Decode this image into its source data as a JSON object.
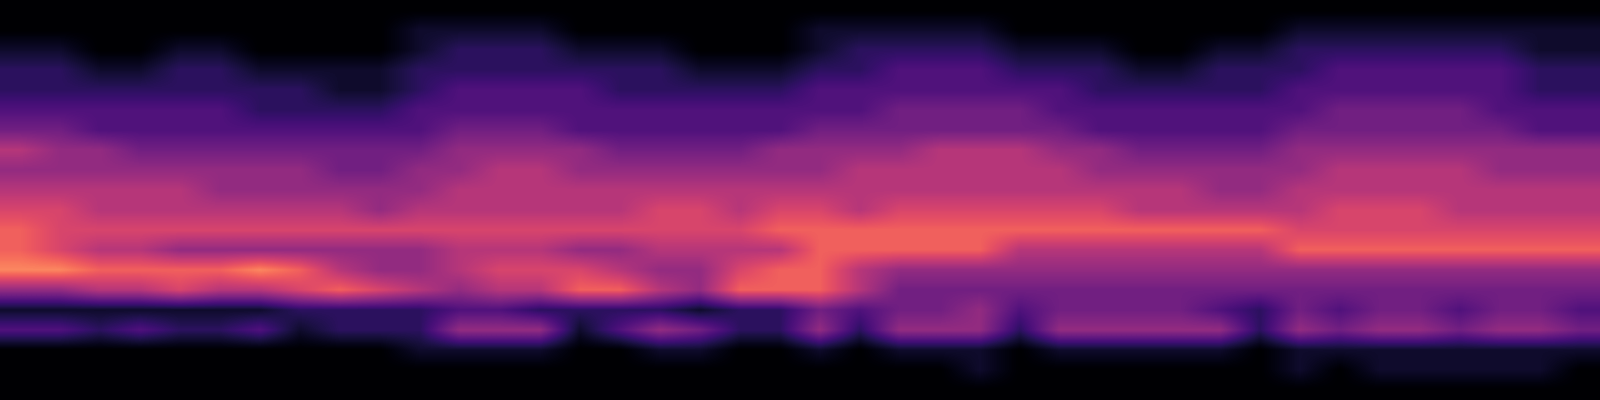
{
  "chart_data": {
    "type": "heatmap",
    "color": "magma",
    "tick_labels": false,
    "value_range": [
      0,
      12
    ],
    "cells": [
      [
        0,
        0,
        0,
        0,
        0,
        0,
        0,
        0,
        0,
        0,
        0,
        0,
        0,
        0,
        0,
        0,
        0,
        0,
        0,
        0,
        0,
        0,
        0,
        0,
        0,
        0,
        0,
        0,
        0,
        0,
        0,
        0,
        0,
        0,
        0,
        0,
        0,
        0,
        0,
        0
      ],
      [
        0,
        0,
        0,
        0,
        0,
        0,
        0,
        0,
        0,
        0,
        1,
        1,
        1,
        1,
        0,
        0,
        0,
        0,
        0,
        0,
        1,
        1,
        1,
        1,
        1,
        0,
        0,
        0,
        0,
        0,
        0,
        0,
        1,
        1,
        1,
        1,
        1,
        1,
        1,
        1
      ],
      [
        1,
        1,
        0,
        0,
        1,
        1,
        0,
        0,
        0,
        0,
        1,
        2,
        2,
        2,
        1,
        1,
        1,
        0,
        0,
        0,
        1,
        2,
        2,
        2,
        2,
        1,
        1,
        1,
        0,
        0,
        1,
        1,
        2,
        2,
        2,
        2,
        2,
        2,
        1,
        1
      ],
      [
        2,
        2,
        1,
        1,
        2,
        2,
        1,
        1,
        1,
        1,
        2,
        2,
        2,
        2,
        2,
        2,
        2,
        1,
        1,
        1,
        2,
        2,
        3,
        3,
        3,
        2,
        2,
        2,
        1,
        1,
        2,
        2,
        2,
        3,
        3,
        3,
        3,
        3,
        2,
        2
      ],
      [
        2,
        2,
        2,
        2,
        2,
        2,
        2,
        2,
        1,
        1,
        2,
        3,
        3,
        3,
        3,
        2,
        2,
        2,
        2,
        2,
        3,
        3,
        3,
        3,
        3,
        3,
        3,
        2,
        2,
        2,
        2,
        2,
        3,
        3,
        3,
        3,
        3,
        3,
        2,
        2
      ],
      [
        3,
        3,
        3,
        3,
        3,
        3,
        2,
        2,
        2,
        2,
        3,
        3,
        3,
        3,
        3,
        3,
        3,
        3,
        3,
        3,
        3,
        3,
        4,
        4,
        4,
        4,
        3,
        3,
        3,
        3,
        3,
        3,
        3,
        4,
        4,
        4,
        4,
        3,
        3,
        3
      ],
      [
        4,
        4,
        3,
        3,
        3,
        3,
        3,
        3,
        3,
        3,
        3,
        4,
        4,
        4,
        3,
        3,
        3,
        3,
        3,
        3,
        4,
        4,
        4,
        4,
        4,
        4,
        4,
        3,
        3,
        3,
        3,
        3,
        4,
        4,
        4,
        4,
        4,
        4,
        3,
        3
      ],
      [
        6,
        5,
        5,
        4,
        4,
        4,
        4,
        4,
        4,
        4,
        4,
        5,
        5,
        5,
        5,
        4,
        4,
        4,
        4,
        5,
        5,
        5,
        5,
        6,
        6,
        6,
        5,
        5,
        4,
        4,
        4,
        4,
        5,
        5,
        5,
        5,
        5,
        5,
        5,
        5
      ],
      [
        5,
        5,
        5,
        5,
        5,
        5,
        5,
        5,
        4,
        4,
        5,
        5,
        6,
        6,
        5,
        5,
        5,
        5,
        5,
        5,
        5,
        6,
        6,
        6,
        6,
        6,
        6,
        5,
        5,
        5,
        5,
        5,
        5,
        6,
        6,
        6,
        6,
        5,
        5,
        5
      ],
      [
        6,
        6,
        6,
        6,
        6,
        5,
        5,
        5,
        5,
        5,
        5,
        6,
        6,
        6,
        6,
        6,
        6,
        6,
        6,
        6,
        6,
        6,
        6,
        6,
        6,
        6,
        6,
        6,
        6,
        6,
        5,
        5,
        6,
        6,
        6,
        6,
        6,
        6,
        6,
        6
      ],
      [
        7,
        7,
        6,
        6,
        6,
        6,
        6,
        6,
        6,
        5,
        6,
        6,
        6,
        6,
        6,
        6,
        7,
        7,
        6,
        7,
        7,
        6,
        7,
        7,
        7,
        7,
        7,
        7,
        6,
        6,
        6,
        6,
        6,
        7,
        7,
        7,
        6,
        6,
        6,
        6
      ],
      [
        8,
        7,
        7,
        7,
        7,
        7,
        7,
        7,
        7,
        7,
        7,
        7,
        7,
        7,
        7,
        7,
        7,
        7,
        7,
        8,
        8,
        8,
        8,
        8,
        8,
        8,
        8,
        8,
        8,
        8,
        8,
        8,
        7,
        7,
        7,
        7,
        7,
        7,
        7,
        7
      ],
      [
        8,
        7,
        6,
        6,
        5,
        5,
        5,
        5,
        5,
        5,
        5,
        6,
        6,
        6,
        5,
        5,
        6,
        6,
        6,
        6,
        8,
        8,
        8,
        8,
        8,
        6,
        6,
        6,
        6,
        6,
        6,
        6,
        8,
        8,
        8,
        8,
        8,
        8,
        8,
        8
      ],
      [
        9,
        9,
        8,
        8,
        8,
        8,
        9,
        8,
        6,
        5,
        5,
        6,
        7,
        7,
        7,
        6,
        5,
        5,
        7,
        8,
        8,
        6,
        5,
        5,
        5,
        5,
        5,
        5,
        5,
        5,
        5,
        5,
        5,
        5,
        5,
        5,
        5,
        5,
        5,
        5
      ],
      [
        5,
        5,
        6,
        6,
        7,
        6,
        6,
        7,
        8,
        7,
        6,
        5,
        6,
        6,
        8,
        8,
        6,
        5,
        8,
        8,
        8,
        6,
        4,
        4,
        4,
        4,
        4,
        4,
        4,
        4,
        4,
        4,
        4,
        4,
        4,
        4,
        4,
        4,
        4,
        4
      ],
      [
        1,
        1,
        1,
        1,
        1,
        1,
        1,
        2,
        2,
        2,
        2,
        3,
        3,
        2,
        2,
        2,
        2,
        1,
        2,
        2,
        4,
        3,
        4,
        4,
        5,
        3,
        4,
        4,
        4,
        4,
        3,
        2,
        4,
        3,
        4,
        4,
        3,
        4,
        4,
        3
      ],
      [
        3,
        3,
        2,
        3,
        2,
        2,
        3,
        1,
        2,
        2,
        2,
        5,
        5,
        5,
        1,
        3,
        5,
        4,
        2,
        2,
        5,
        2,
        5,
        5,
        5,
        2,
        5,
        5,
        5,
        5,
        5,
        2,
        5,
        4,
        5,
        5,
        4,
        5,
        5,
        4
      ],
      [
        0,
        0,
        0,
        0,
        0,
        0,
        0,
        0,
        0,
        0,
        1,
        1,
        1,
        1,
        0,
        0,
        1,
        1,
        0,
        0,
        1,
        0,
        1,
        1,
        1,
        0,
        1,
        1,
        1,
        1,
        1,
        0,
        1,
        1,
        1,
        1,
        1,
        1,
        1,
        1
      ],
      [
        0,
        0,
        0,
        0,
        0,
        0,
        0,
        0,
        0,
        0,
        0,
        0,
        0,
        0,
        0,
        0,
        0,
        0,
        0,
        0,
        0,
        0,
        0,
        0,
        1,
        0,
        0,
        0,
        0,
        0,
        0,
        0,
        1,
        0,
        1,
        1,
        1,
        1,
        1,
        0
      ],
      [
        0,
        0,
        0,
        0,
        0,
        0,
        0,
        0,
        0,
        0,
        0,
        0,
        0,
        0,
        0,
        0,
        0,
        0,
        0,
        0,
        0,
        0,
        0,
        0,
        0,
        0,
        0,
        0,
        0,
        0,
        0,
        0,
        0,
        0,
        0,
        0,
        0,
        0,
        0,
        0
      ]
    ]
  }
}
